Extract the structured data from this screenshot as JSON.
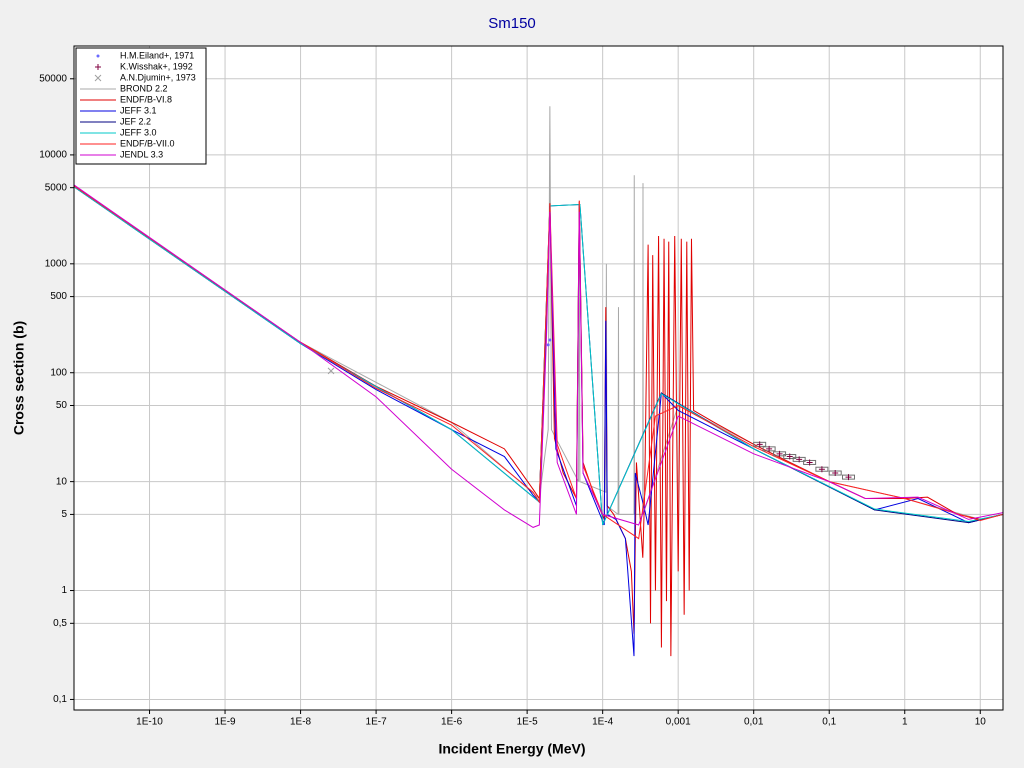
{
  "chart_data": {
    "type": "line",
    "title": "Sm150",
    "x_label": "Incident Energy (MeV)",
    "y_label": "Cross section (b)",
    "xscale": "log",
    "yscale": "log",
    "grid": true,
    "legend": "upper left",
    "xlim": [
      1e-11,
      20
    ],
    "ylim": [
      0.08,
      100000
    ],
    "xticks": [
      {
        "value": 1e-10,
        "label": "1E-10"
      },
      {
        "value": 1e-09,
        "label": "1E-9"
      },
      {
        "value": 1e-08,
        "label": "1E-8"
      },
      {
        "value": 1e-07,
        "label": "1E-7"
      },
      {
        "value": 1e-06,
        "label": "1E-6"
      },
      {
        "value": 1e-05,
        "label": "1E-5"
      },
      {
        "value": 0.0001,
        "label": "1E-4"
      },
      {
        "value": 0.001,
        "label": "0,001"
      },
      {
        "value": 0.01,
        "label": "0,01"
      },
      {
        "value": 0.1,
        "label": "0,1"
      },
      1,
      10
    ],
    "yticks": [
      {
        "value": 0.1,
        "label": "0,1"
      },
      {
        "value": 0.5,
        "label": "0,5"
      },
      1,
      5,
      10,
      50,
      100,
      500,
      1000,
      5000,
      10000,
      50000
    ],
    "points": [
      {
        "name": "H.M.Eiland+, 1971",
        "color": "#6a6aff",
        "marker": "dot",
        "x": [
          1.9e-05,
          2e-05
        ],
        "values": [
          180,
          200
        ]
      },
      {
        "name": "K.Wisshak+, 1992",
        "color": "#800040",
        "marker": "plus",
        "x": [
          0.012,
          0.016,
          0.022,
          0.03,
          0.04,
          0.055,
          0.08,
          0.12,
          0.18
        ],
        "values": [
          22,
          20,
          18,
          17,
          16,
          15,
          13,
          12,
          11
        ]
      },
      {
        "name": "A.N.Djumin+, 1973",
        "color": "#a0a0a0",
        "marker": "x",
        "x": [
          2.53e-08
        ],
        "values": [
          104
        ]
      }
    ],
    "series": [
      {
        "name": "BROND 2.2",
        "color": "#a8a8a8",
        "x": [
          1e-11,
          1e-08,
          1e-06,
          1.45e-05,
          1.9e-05,
          2e-05,
          2.1e-05,
          4.8e-05,
          4.9e-05,
          5e-05,
          0.00011,
          0.000112,
          0.000114,
          0.00016,
          0.000162,
          0.000164,
          0.00026,
          0.000262,
          0.000264,
          0.00034,
          0.000342,
          0.000344,
          0.001,
          0.01,
          0.1,
          1,
          10,
          20
        ],
        "values": [
          5200,
          190,
          35,
          7,
          30,
          28000,
          30,
          10,
          3000,
          10,
          8,
          1000,
          6,
          5,
          400,
          5,
          5,
          6500,
          5,
          5,
          5500,
          5,
          50,
          22,
          10,
          7,
          4.5,
          5
        ]
      },
      {
        "name": "ENDF/B-VI.8",
        "color": "#e00000",
        "x": [
          1e-11,
          1e-09,
          1e-08,
          1e-07,
          1e-06,
          5e-06,
          1.2e-05,
          1.45e-05,
          1.8e-05,
          2e-05,
          2.3e-05,
          3e-05,
          4.5e-05,
          4.9e-05,
          5.5e-05,
          8e-05,
          0.000105,
          0.00011,
          0.000115,
          0.00014,
          0.0002,
          0.00024,
          0.00026,
          0.00028,
          0.00034,
          0.00036,
          0.0004,
          0.00043,
          0.00046,
          0.0005,
          0.00055,
          0.0006,
          0.00065,
          0.0007,
          0.00075,
          0.0008,
          0.0009,
          0.001,
          0.0011,
          0.0012,
          0.0013,
          0.0014,
          0.0015,
          0.0016,
          0.003,
          0.01,
          0.03,
          0.1,
          0.3,
          1,
          2,
          5,
          10,
          20
        ],
        "values": [
          5200,
          560,
          190,
          75,
          35,
          20,
          8.5,
          7,
          300,
          3600,
          25,
          12,
          7,
          3800,
          15,
          7,
          4.5,
          400,
          6,
          5,
          3,
          1.5,
          0.4,
          15,
          2,
          8,
          1500,
          0.5,
          1200,
          1,
          1800,
          0.3,
          1700,
          0.8,
          1600,
          0.25,
          1800,
          1.5,
          1700,
          0.6,
          1600,
          1,
          1700,
          45,
          35,
          22,
          15,
          10,
          7,
          7,
          7.2,
          5,
          4.5,
          5
        ]
      },
      {
        "name": "JEFF 3.1",
        "color": "#0000e0",
        "x": [
          1e-11,
          1e-08,
          1e-07,
          1e-06,
          5e-06,
          1.2e-05,
          1.45e-05,
          1.8e-05,
          2e-05,
          2.4e-05,
          4.5e-05,
          4.9e-05,
          5.5e-05,
          0.000105,
          0.00011,
          0.000115,
          0.00015,
          0.0002,
          0.00026,
          0.00027,
          0.00035,
          0.0004,
          0.0006,
          0.001,
          0.01,
          0.1,
          0.4,
          1.5,
          7,
          20
        ],
        "values": [
          5100,
          185,
          70,
          30,
          17,
          7.5,
          6.5,
          250,
          3400,
          20,
          6,
          3500,
          12,
          4,
          300,
          5,
          4.5,
          3,
          0.25,
          12,
          6,
          4,
          65,
          45,
          20,
          9,
          5.5,
          7,
          4.2,
          5
        ]
      },
      {
        "name": "JEF 2.2",
        "color": "#000080",
        "x": [
          1e-11,
          1e-08,
          1e-06,
          1.45e-05,
          2e-05,
          5e-05,
          0.0001,
          0.0006,
          0.01,
          0.4,
          7,
          20
        ],
        "values": [
          5100,
          185,
          30,
          6.5,
          3400,
          3500,
          4,
          65,
          20,
          5.5,
          4.2,
          5
        ]
      },
      {
        "name": "JEFF 3.0",
        "color": "#00c8c8",
        "x": [
          1e-11,
          1e-08,
          1e-06,
          1.45e-05,
          2e-05,
          5e-05,
          0.0001,
          0.0006,
          0.01,
          0.4,
          7,
          20
        ],
        "values": [
          5100,
          185,
          30,
          6.5,
          3400,
          3500,
          4,
          64,
          20,
          5.6,
          4.3,
          5
        ]
      },
      {
        "name": "ENDF/B-VII.0",
        "color": "#ff2020",
        "x": [
          1e-11,
          1e-08,
          1e-07,
          1e-06,
          1.2e-05,
          1.45e-05,
          2e-05,
          2.5e-05,
          4.5e-05,
          4.9e-05,
          5.5e-05,
          0.0001,
          0.0003,
          0.0005,
          0.001,
          0.01,
          0.1,
          1,
          10,
          20
        ],
        "values": [
          5200,
          190,
          72,
          33,
          8,
          6.5,
          3500,
          22,
          7,
          3700,
          14,
          5,
          3,
          40,
          50,
          21,
          10,
          7,
          4.4,
          5
        ]
      },
      {
        "name": "JENDL 3.3",
        "color": "#d000d0",
        "x": [
          1e-11,
          1e-08,
          1e-07,
          1e-06,
          5e-06,
          1.2e-05,
          1.45e-05,
          1.8e-05,
          2e-05,
          2.5e-05,
          4.5e-05,
          4.9e-05,
          5.5e-05,
          0.0001,
          0.0003,
          0.001,
          0.01,
          0.1,
          0.3,
          1.5,
          7,
          20
        ],
        "values": [
          5300,
          190,
          60,
          13,
          5.5,
          3.8,
          4,
          200,
          3000,
          15,
          5,
          3000,
          12,
          5,
          4,
          40,
          18,
          10,
          7,
          7.2,
          4.5,
          5.2
        ]
      }
    ]
  }
}
